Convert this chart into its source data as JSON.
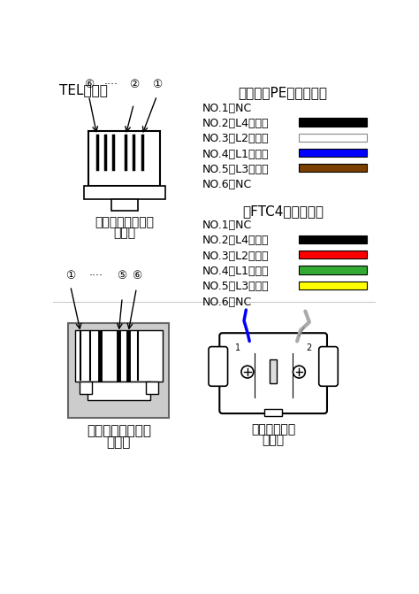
{
  "title_top_left": "TEL配線図",
  "section1_title": "（カッドPEウチセン）",
  "section1_items": [
    {
      "label": "NO.1：NC",
      "color": null
    },
    {
      "label": "NO.2：L4（黒）",
      "color": "#000000"
    },
    {
      "label": "NO.3：L2（白）",
      "color": "#ffffff"
    },
    {
      "label": "NO.4：L1（青）",
      "color": "#0000ff"
    },
    {
      "label": "NO.5：L3（茶）",
      "color": "#7b3f00"
    },
    {
      "label": "NO.6：NC",
      "color": null
    }
  ],
  "section2_title": "（FTC4フラット）",
  "section2_items": [
    {
      "label": "NO.1：NC",
      "color": null
    },
    {
      "label": "NO.2：L4（黒）",
      "color": "#000000"
    },
    {
      "label": "NO.3：L2（赤）",
      "color": "#ff0000"
    },
    {
      "label": "NO.4：L1（緑）",
      "color": "#33aa33"
    },
    {
      "label": "NO.5：L3（黄）",
      "color": "#ffff00"
    },
    {
      "label": "NO.6：NC",
      "color": null
    }
  ],
  "connector_label1": "ケーブルコネクタ",
  "connector_label2": "正面図",
  "jack_label1": "モジュラジャック",
  "jack_label2": "正面図",
  "modular_label1": "モジュラ配線",
  "modular_label2": "背面図",
  "bg_color": "#ffffff",
  "text_color": "#000000"
}
